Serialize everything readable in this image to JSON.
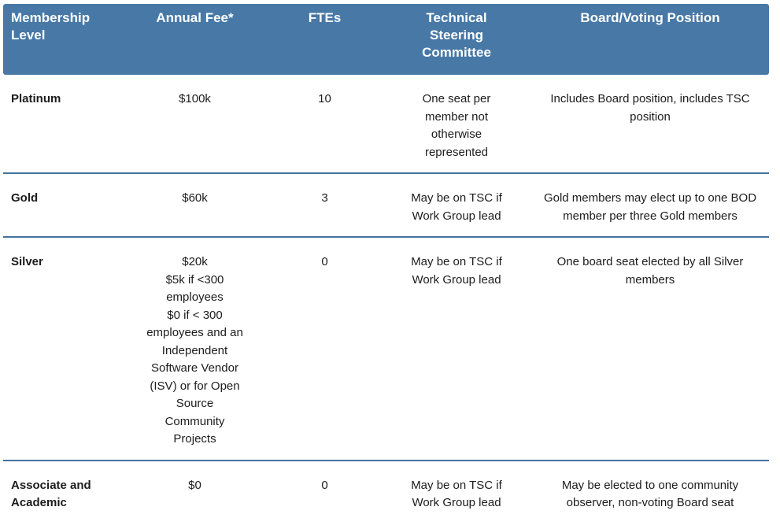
{
  "colors": {
    "header_bg": "#4778a6",
    "header_text": "#ffffff",
    "row_divider": "#44729f",
    "body_text": "#1c1c1c",
    "page_bg": "#ffffff"
  },
  "table": {
    "columns": [
      {
        "id": "level",
        "label": "Membership\nLevel"
      },
      {
        "id": "fee",
        "label": "Annual Fee*"
      },
      {
        "id": "ftes",
        "label": "FTEs"
      },
      {
        "id": "tsc",
        "label": "Technical\nSteering\nCommittee"
      },
      {
        "id": "board",
        "label": "Board/Voting Position"
      }
    ],
    "rows": [
      {
        "level": "Platinum",
        "fee": "$100k",
        "ftes": "10",
        "tsc": "One seat per\nmember not\notherwise\nrepresented",
        "board": "Includes Board position, includes TSC\nposition"
      },
      {
        "level": "Gold",
        "fee": "$60k",
        "ftes": "3",
        "tsc": "May be on TSC if\nWork Group lead",
        "board": "Gold members may elect up to one BOD\nmember per three Gold members"
      },
      {
        "level": "Silver",
        "fee": "$20k\n$5k if <300\nemployees\n$0 if < 300\nemployees and an\nIndependent\nSoftware Vendor\n(ISV) or for Open\nSource\nCommunity\nProjects",
        "ftes": "0",
        "tsc": "May be on TSC if\nWork Group lead",
        "board": "One board seat elected by all Silver\nmembers"
      },
      {
        "level": "Associate and\nAcademic",
        "fee": "$0",
        "ftes": "0",
        "tsc": "May be on TSC if\nWork Group lead",
        "board": "May be elected to one community\nobserver, non-voting Board seat"
      }
    ]
  }
}
